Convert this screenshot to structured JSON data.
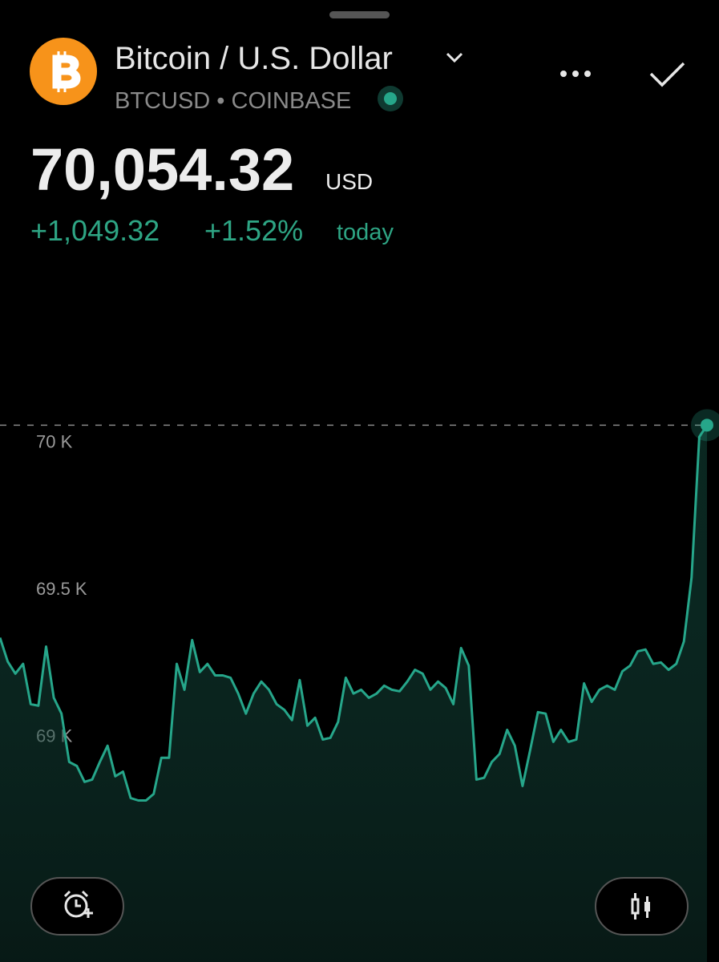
{
  "header": {
    "title": "Bitcoin / U.S. Dollar",
    "subtitle": "BTCUSD • COINBASE",
    "price": "70,054.32",
    "currency": "USD",
    "change": "+1,049.32",
    "change_percent": "+1.52%",
    "period": "today"
  },
  "chart_data": {
    "type": "line",
    "color": "#26a68a",
    "values": [
      69332,
      69251,
      69210,
      69243,
      69106,
      69101,
      69302,
      69128,
      69074,
      68910,
      68896,
      68842,
      68850,
      68910,
      68965,
      68861,
      68877,
      68787,
      68779,
      68779,
      68801,
      68924,
      68924,
      69243,
      69155,
      69324,
      69215,
      69243,
      69204,
      69204,
      69196,
      69142,
      69074,
      69142,
      69183,
      69155,
      69106,
      69087,
      69052,
      69188,
      69033,
      69060,
      68986,
      68992,
      69046,
      69196,
      69142,
      69155,
      69128,
      69142,
      69169,
      69155,
      69150,
      69183,
      69223,
      69210,
      69155,
      69183,
      69161,
      69106,
      69297,
      69237,
      68850,
      68856,
      68910,
      68937,
      69019,
      68965,
      68828,
      68951,
      69079,
      69074,
      68978,
      69019,
      68978,
      68986,
      69177,
      69114,
      69155,
      69169,
      69155,
      69218,
      69237,
      69286,
      69292,
      69243,
      69248,
      69223,
      69243,
      69319,
      69537,
      70014,
      70054.32
    ],
    "ylim": [
      68230,
      70600
    ],
    "yticks": [
      {
        "value": 69000,
        "label": "69 K"
      },
      {
        "value": 69500,
        "label": "69.5 K"
      },
      {
        "value": 70000,
        "label": "70 K"
      }
    ],
    "grid": false
  }
}
